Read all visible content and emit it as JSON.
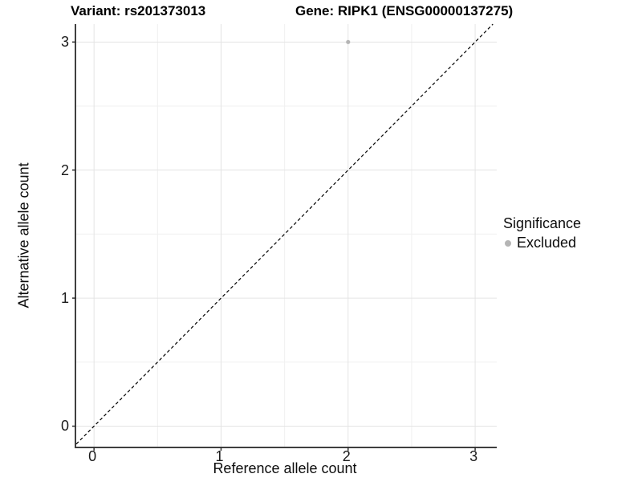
{
  "page": {
    "background": "#ffffff"
  },
  "chart_data": {
    "type": "scatter",
    "title_left": "Variant: rs201373013",
    "title_right": "Gene: RIPK1 (ENSG00000137275)",
    "xlabel": "Reference allele count",
    "ylabel": "Alternative allele count",
    "xlim": [
      -0.14,
      3.17
    ],
    "ylim": [
      -0.16,
      3.14
    ],
    "xticks": [
      0,
      1,
      2,
      3
    ],
    "yticks": [
      0,
      1,
      2,
      3
    ],
    "grid": {
      "major": true,
      "minor": true,
      "major_color": "#e4e4e4",
      "minor_color": "#f0f0f0"
    },
    "reference_line": {
      "type": "identity",
      "style": "dashed",
      "color": "#000000"
    },
    "series": [
      {
        "name": "Excluded",
        "color": "#b5b5b5",
        "points": [
          {
            "x": 2,
            "y": 3
          }
        ]
      }
    ],
    "legend": {
      "title": "Significance",
      "position": "right",
      "entries": [
        {
          "label": "Excluded",
          "color": "#b5b5b5"
        }
      ]
    },
    "axis": {
      "line_color": "#3f3f3f",
      "tick_color": "#333333",
      "tick_length": 5
    }
  }
}
